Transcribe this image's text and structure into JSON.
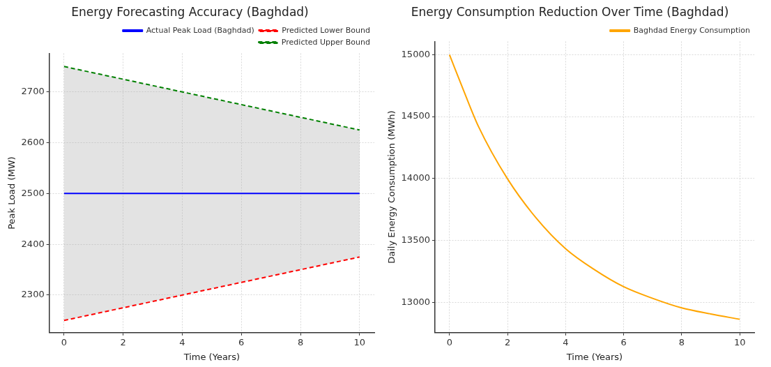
{
  "chart_data": [
    {
      "type": "line",
      "title": "Energy Forecasting Accuracy (Baghdad)",
      "xlabel": "Time (Years)",
      "ylabel": "Peak Load (MW)",
      "x": [
        0,
        10
      ],
      "series": [
        {
          "name": "Actual Peak Load (Baghdad)",
          "color": "#0000ff",
          "values": [
            2500,
            2500
          ],
          "lower": [
            2250,
            2375
          ],
          "upper": [
            2750,
            2625
          ],
          "line_style": "solid"
        },
        {
          "name": "Predicted Lower Bound",
          "color": "#ff0000",
          "values": [
            2250,
            2375
          ],
          "line_style": "dashed"
        },
        {
          "name": "Predicted Upper Bound",
          "color": "#008000",
          "values": [
            2750,
            2625
          ],
          "line_style": "dashed"
        }
      ],
      "xlim": [
        -0.5,
        10.5
      ],
      "ylim": [
        2226,
        2776
      ],
      "xticks": [
        0,
        2,
        4,
        6,
        8,
        10
      ],
      "yticks": [
        2300,
        2400,
        2500,
        2600,
        2700
      ],
      "grid": true,
      "legend": "top right",
      "marker": "none"
    },
    {
      "type": "line",
      "title": "Energy Consumption Reduction Over Time (Baghdad)",
      "xlabel": "Time (Years)",
      "ylabel": "Daily Energy Consumption (MWh)",
      "x": [
        0,
        0.5,
        1,
        2,
        3,
        4,
        5,
        6,
        7,
        8,
        9,
        10
      ],
      "series": [
        {
          "name": "Baghdad Energy Consumption",
          "color": "#ffa500",
          "values": [
            15000,
            14703,
            14420,
            13997,
            13677,
            13433,
            13263,
            13126,
            13032,
            12955,
            12906,
            12863
          ],
          "line_style": "solid"
        }
      ],
      "xlim": [
        -0.5,
        10.5
      ],
      "ylim": [
        12755,
        15107
      ],
      "xticks": [
        0,
        2,
        4,
        6,
        8,
        10
      ],
      "yticks": [
        13000,
        13500,
        14000,
        14500,
        15000
      ],
      "grid": true,
      "legend": "top right",
      "marker": "none"
    }
  ]
}
